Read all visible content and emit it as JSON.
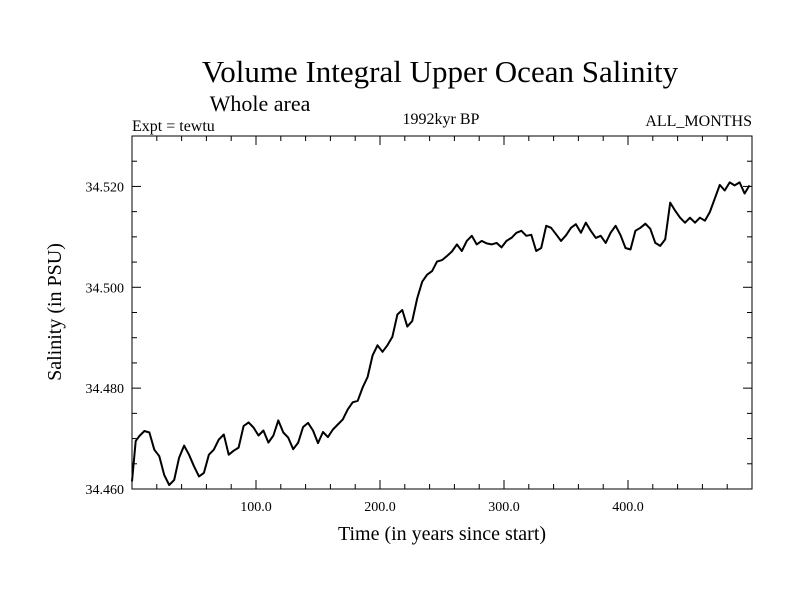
{
  "chart_data": {
    "type": "line",
    "title": "Volume Integral Upper Ocean Salinity",
    "subtitle": "Whole area",
    "header_left": "Expt = tewtu",
    "header_center": "1992kyr BP",
    "header_right": "ALL_MONTHS",
    "xlabel": "Time (in years since start)",
    "ylabel": "Salinity (in PSU)",
    "xlim": [
      0,
      500
    ],
    "ylim": [
      34.46,
      34.53
    ],
    "x_ticks": [
      100,
      200,
      300,
      400
    ],
    "x_tick_labels": [
      "100.0",
      "200.0",
      "300.0",
      "400.0"
    ],
    "y_ticks": [
      34.46,
      34.48,
      34.5,
      34.52
    ],
    "y_tick_labels": [
      "34.460",
      "34.480",
      "34.500",
      "34.520"
    ],
    "grid": false,
    "series": [
      {
        "name": "salinity",
        "color": "#000000",
        "x": [
          0,
          3,
          6,
          10,
          14,
          18,
          22,
          26,
          30,
          34,
          38,
          42,
          46,
          50,
          54,
          58,
          62,
          66,
          70,
          74,
          78,
          82,
          86,
          90,
          94,
          98,
          102,
          106,
          110,
          114,
          118,
          122,
          126,
          130,
          134,
          138,
          142,
          146,
          150,
          154,
          158,
          162,
          166,
          170,
          174,
          178,
          182,
          186,
          190,
          194,
          198,
          202,
          206,
          210,
          214,
          218,
          222,
          226,
          230,
          234,
          238,
          242,
          246,
          250,
          254,
          258,
          262,
          266,
          270,
          274,
          278,
          282,
          286,
          290,
          294,
          298,
          302,
          306,
          310,
          314,
          318,
          322,
          326,
          330,
          334,
          338,
          342,
          346,
          350,
          354,
          358,
          362,
          366,
          370,
          374,
          378,
          382,
          386,
          390,
          394,
          398,
          402,
          406,
          410,
          414,
          418,
          422,
          426,
          430,
          434,
          438,
          442,
          446,
          450,
          454,
          458,
          462,
          466,
          470,
          474,
          478,
          482,
          486,
          490,
          494,
          498
        ],
        "y": [
          34.4615,
          34.4695,
          34.4705,
          34.4715,
          34.4712,
          34.4678,
          34.4665,
          34.4628,
          34.4608,
          34.4618,
          34.4662,
          34.4686,
          34.4668,
          34.4645,
          34.4625,
          34.4632,
          34.4668,
          34.4678,
          34.4698,
          34.4708,
          34.4668,
          34.4676,
          34.4682,
          34.4725,
          34.4732,
          34.4722,
          34.4706,
          34.4716,
          34.4692,
          34.4706,
          34.4736,
          34.4712,
          34.4702,
          34.4679,
          34.4692,
          34.4723,
          34.4731,
          34.4716,
          34.4691,
          34.4713,
          34.4703,
          34.4718,
          34.4728,
          34.4738,
          34.4758,
          34.4772,
          34.4775,
          34.4801,
          34.4822,
          34.4865,
          34.4885,
          34.4872,
          34.4885,
          34.4902,
          34.4946,
          34.4955,
          34.4922,
          34.4933,
          34.4978,
          34.5011,
          34.5025,
          34.5032,
          34.5051,
          34.5054,
          34.5062,
          34.5071,
          34.5085,
          34.5072,
          34.5092,
          34.5102,
          34.5085,
          34.5092,
          34.5087,
          34.5085,
          34.5088,
          34.5079,
          34.5092,
          34.5098,
          34.5108,
          34.5112,
          34.5102,
          34.5104,
          34.5072,
          34.5078,
          34.5122,
          34.5118,
          34.5105,
          34.5092,
          34.5103,
          34.5118,
          34.5125,
          34.5108,
          34.5128,
          34.5112,
          34.5098,
          34.5102,
          34.5088,
          34.5108,
          34.5122,
          34.5103,
          34.5078,
          34.5075,
          34.5112,
          34.5118,
          34.5126,
          34.5116,
          34.5088,
          34.5082,
          34.5095,
          34.5168,
          34.5152,
          34.5138,
          34.5128,
          34.5138,
          34.5128,
          34.5138,
          34.5132,
          34.5149,
          34.5176,
          34.5203,
          34.5192,
          34.5208,
          34.5202,
          34.5208,
          34.5186,
          34.5202
        ]
      }
    ]
  }
}
